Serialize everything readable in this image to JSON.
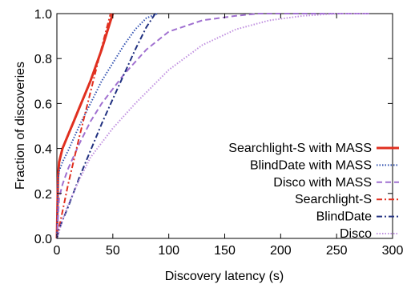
{
  "chart_data": {
    "type": "line",
    "title": "",
    "xlabel": "Discovery latency (s)",
    "ylabel": "Fraction of discoveries",
    "xlim": [
      0,
      300
    ],
    "ylim": [
      0,
      1.0
    ],
    "xticks": [
      0,
      50,
      100,
      150,
      200,
      250,
      300
    ],
    "yticks": [
      0.0,
      0.2,
      0.4,
      0.6,
      0.8,
      1.0
    ],
    "xtick_labels": [
      "0",
      "50",
      "100",
      "150",
      "200",
      "250",
      "300"
    ],
    "ytick_labels": [
      "0.0",
      "0.2",
      "0.4",
      "0.6",
      "0.8",
      "1.0"
    ],
    "grid": false,
    "legend_position": "bottom-right",
    "series": [
      {
        "name": "Searchlight-S with MASS",
        "color": "#e03020",
        "dash": "solid",
        "x": [
          0,
          1,
          2,
          5,
          10,
          15,
          20,
          25,
          30,
          35,
          40,
          45,
          50
        ],
        "y": [
          0.0,
          0.27,
          0.34,
          0.4,
          0.46,
          0.52,
          0.58,
          0.64,
          0.7,
          0.77,
          0.84,
          0.92,
          1.0
        ]
      },
      {
        "name": "BlindDate with MASS",
        "color": "#3050b0",
        "dash": "dotted",
        "x": [
          0,
          1,
          2,
          5,
          10,
          20,
          30,
          40,
          50,
          60,
          70,
          80,
          90
        ],
        "y": [
          0.0,
          0.26,
          0.3,
          0.34,
          0.39,
          0.5,
          0.6,
          0.7,
          0.78,
          0.86,
          0.93,
          0.98,
          1.0
        ]
      },
      {
        "name": "Disco with MASS",
        "color": "#a070d0",
        "dash": "dashed",
        "x": [
          0,
          2,
          5,
          10,
          20,
          30,
          40,
          60,
          80,
          100,
          130,
          160,
          180,
          280
        ],
        "y": [
          0.0,
          0.18,
          0.24,
          0.31,
          0.42,
          0.52,
          0.6,
          0.73,
          0.84,
          0.92,
          0.97,
          0.99,
          1.0,
          1.0
        ]
      },
      {
        "name": "Searchlight-S",
        "color": "#e03020",
        "dash": "dashdot",
        "x": [
          0,
          2,
          5,
          10,
          20,
          30,
          40,
          48
        ],
        "y": [
          0.0,
          0.05,
          0.12,
          0.24,
          0.45,
          0.65,
          0.85,
          1.0
        ]
      },
      {
        "name": "BlindDate",
        "color": "#203080",
        "dash": "dashdot",
        "x": [
          0,
          2,
          5,
          10,
          20,
          30,
          40,
          50,
          60,
          70,
          80,
          88
        ],
        "y": [
          0.0,
          0.04,
          0.08,
          0.14,
          0.27,
          0.39,
          0.51,
          0.62,
          0.73,
          0.84,
          0.94,
          1.0
        ]
      },
      {
        "name": "Disco",
        "color": "#c090e0",
        "dash": "dotted",
        "x": [
          0,
          5,
          10,
          20,
          30,
          50,
          70,
          100,
          130,
          160,
          190,
          220,
          250,
          280
        ],
        "y": [
          0.0,
          0.08,
          0.15,
          0.26,
          0.36,
          0.49,
          0.6,
          0.75,
          0.86,
          0.93,
          0.97,
          0.99,
          1.0,
          1.0
        ]
      }
    ]
  }
}
